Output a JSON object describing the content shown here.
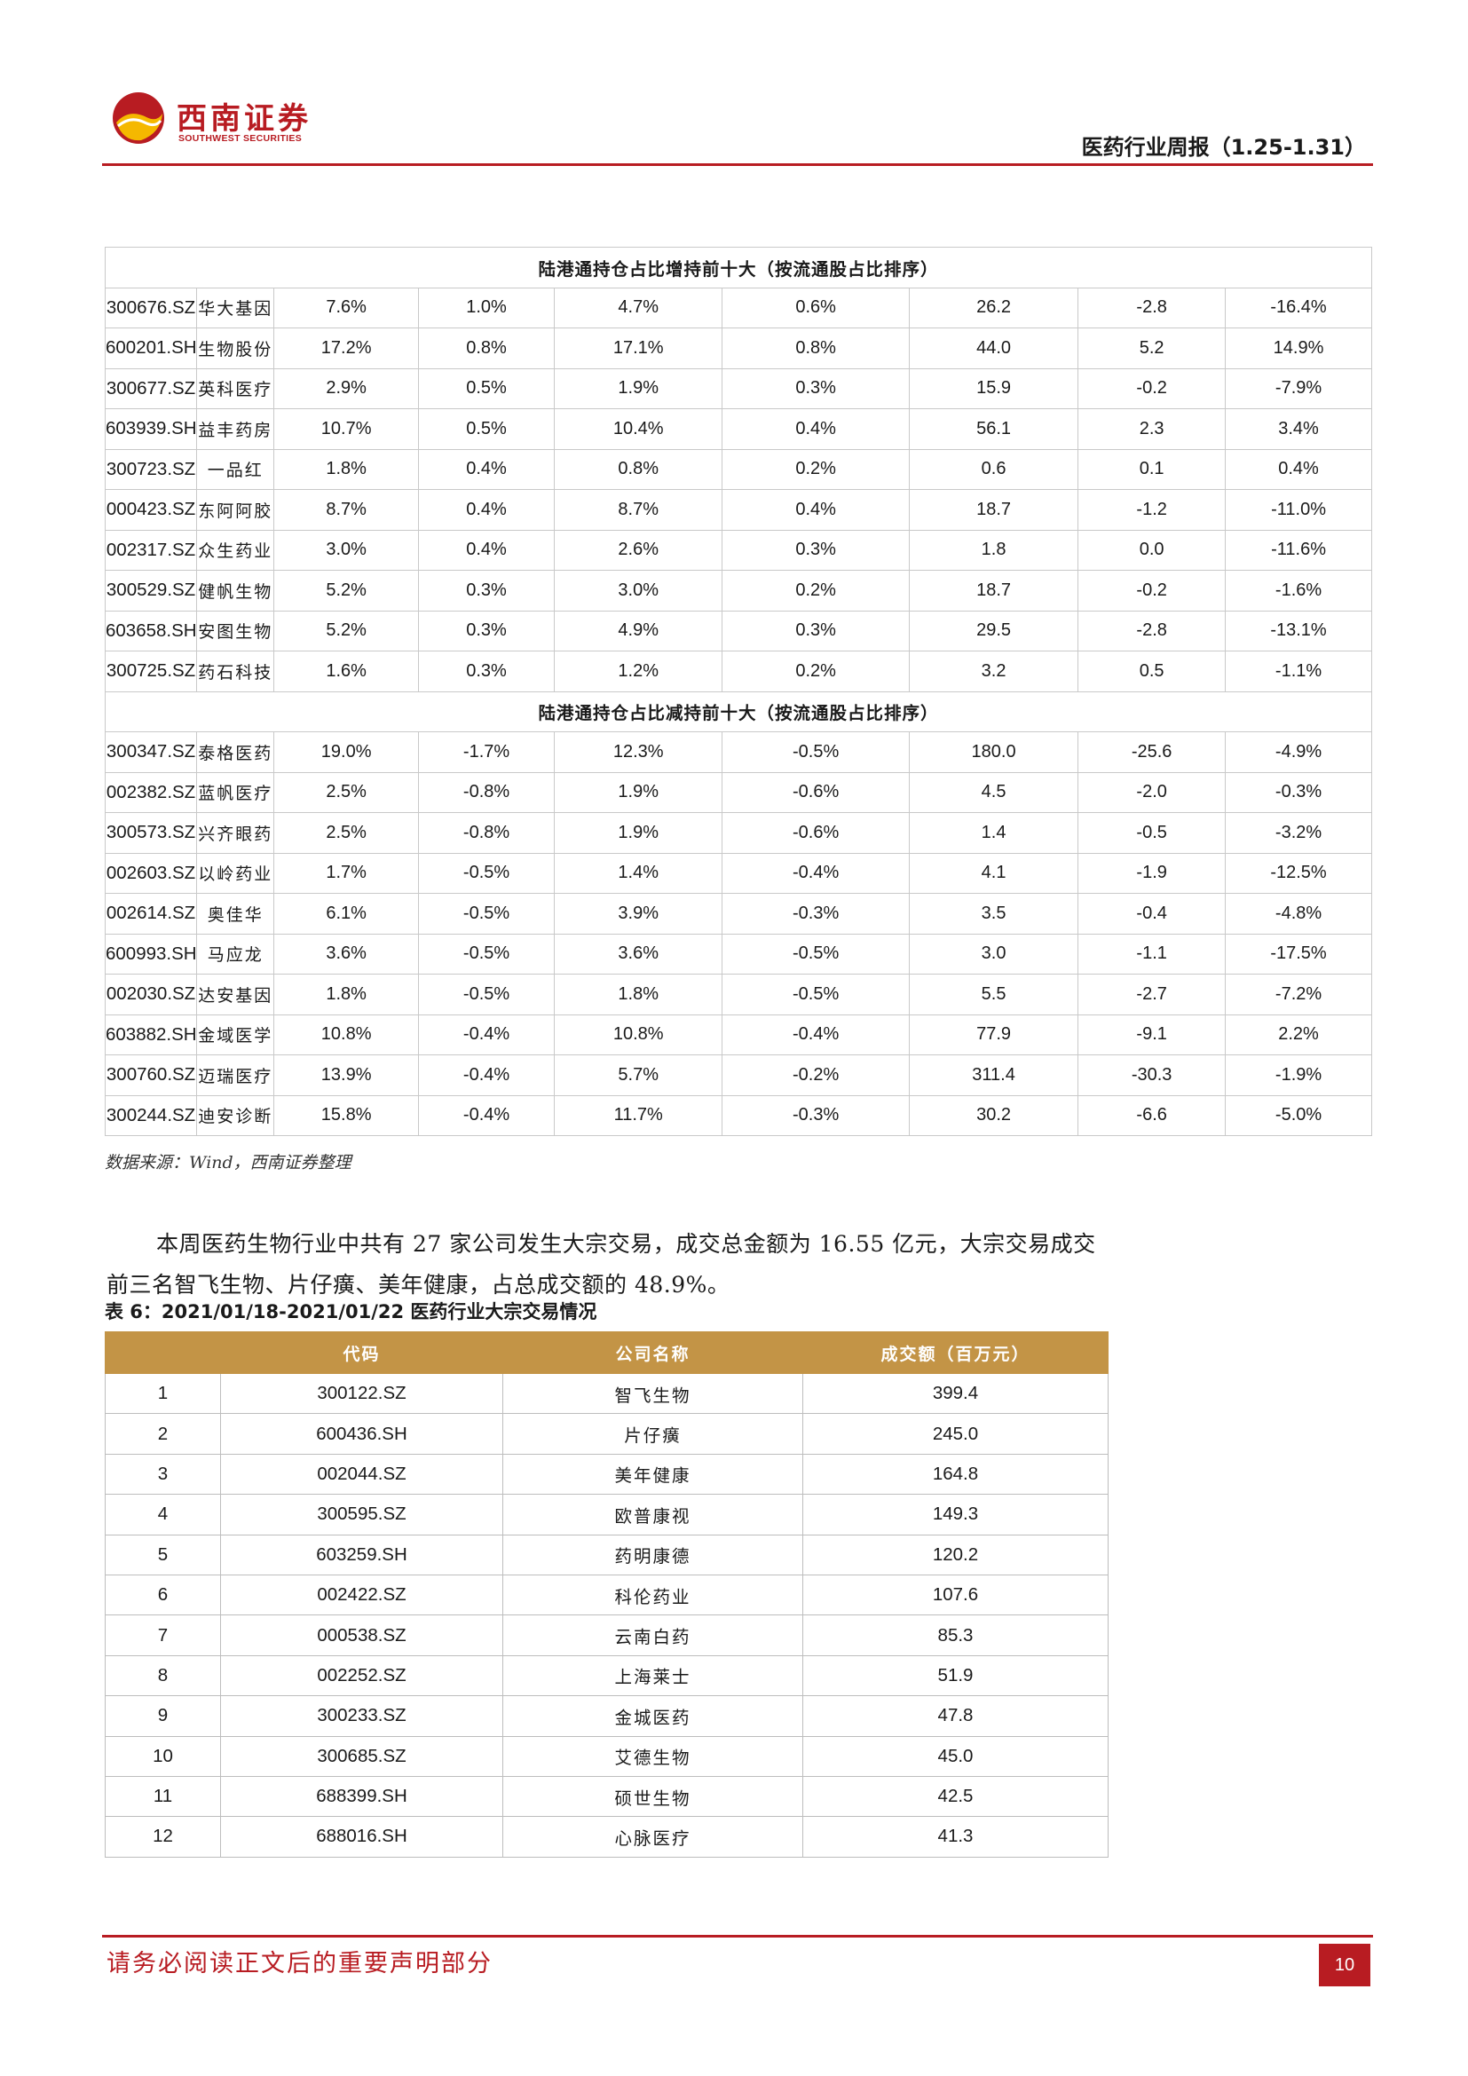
{
  "header": {
    "logo_cn": "西南证券",
    "logo_en": "SOUTHWEST SECURITIES",
    "report_title": "医药行业周报（1.25-1.31）",
    "brand_color": "#b81c22",
    "logo_yellow": "#f5b800"
  },
  "table5": {
    "section_increase": "陆港通持仓占比增持前十大（按流通股占比排序）",
    "increase_rows": [
      [
        "300676.SZ",
        "华大基因",
        "7.6%",
        "1.0%",
        "4.7%",
        "0.6%",
        "26.2",
        "-2.8",
        "-16.4%"
      ],
      [
        "600201.SH",
        "生物股份",
        "17.2%",
        "0.8%",
        "17.1%",
        "0.8%",
        "44.0",
        "5.2",
        "14.9%"
      ],
      [
        "300677.SZ",
        "英科医疗",
        "2.9%",
        "0.5%",
        "1.9%",
        "0.3%",
        "15.9",
        "-0.2",
        "-7.9%"
      ],
      [
        "603939.SH",
        "益丰药房",
        "10.7%",
        "0.5%",
        "10.4%",
        "0.4%",
        "56.1",
        "2.3",
        "3.4%"
      ],
      [
        "300723.SZ",
        "一品红",
        "1.8%",
        "0.4%",
        "0.8%",
        "0.2%",
        "0.6",
        "0.1",
        "0.4%"
      ],
      [
        "000423.SZ",
        "东阿阿胶",
        "8.7%",
        "0.4%",
        "8.7%",
        "0.4%",
        "18.7",
        "-1.2",
        "-11.0%"
      ],
      [
        "002317.SZ",
        "众生药业",
        "3.0%",
        "0.4%",
        "2.6%",
        "0.3%",
        "1.8",
        "0.0",
        "-11.6%"
      ],
      [
        "300529.SZ",
        "健帆生物",
        "5.2%",
        "0.3%",
        "3.0%",
        "0.2%",
        "18.7",
        "-0.2",
        "-1.6%"
      ],
      [
        "603658.SH",
        "安图生物",
        "5.2%",
        "0.3%",
        "4.9%",
        "0.3%",
        "29.5",
        "-2.8",
        "-13.1%"
      ],
      [
        "300725.SZ",
        "药石科技",
        "1.6%",
        "0.3%",
        "1.2%",
        "0.2%",
        "3.2",
        "0.5",
        "-1.1%"
      ]
    ],
    "section_decrease": "陆港通持仓占比减持前十大（按流通股占比排序）",
    "decrease_rows": [
      [
        "300347.SZ",
        "泰格医药",
        "19.0%",
        "-1.7%",
        "12.3%",
        "-0.5%",
        "180.0",
        "-25.6",
        "-4.9%"
      ],
      [
        "002382.SZ",
        "蓝帆医疗",
        "2.5%",
        "-0.8%",
        "1.9%",
        "-0.6%",
        "4.5",
        "-2.0",
        "-0.3%"
      ],
      [
        "300573.SZ",
        "兴齐眼药",
        "2.5%",
        "-0.8%",
        "1.9%",
        "-0.6%",
        "1.4",
        "-0.5",
        "-3.2%"
      ],
      [
        "002603.SZ",
        "以岭药业",
        "1.7%",
        "-0.5%",
        "1.4%",
        "-0.4%",
        "4.1",
        "-1.9",
        "-12.5%"
      ],
      [
        "002614.SZ",
        "奥佳华",
        "6.1%",
        "-0.5%",
        "3.9%",
        "-0.3%",
        "3.5",
        "-0.4",
        "-4.8%"
      ],
      [
        "600993.SH",
        "马应龙",
        "3.6%",
        "-0.5%",
        "3.6%",
        "-0.5%",
        "3.0",
        "-1.1",
        "-17.5%"
      ],
      [
        "002030.SZ",
        "达安基因",
        "1.8%",
        "-0.5%",
        "1.8%",
        "-0.5%",
        "5.5",
        "-2.7",
        "-7.2%"
      ],
      [
        "603882.SH",
        "金域医学",
        "10.8%",
        "-0.4%",
        "10.8%",
        "-0.4%",
        "77.9",
        "-9.1",
        "2.2%"
      ],
      [
        "300760.SZ",
        "迈瑞医疗",
        "13.9%",
        "-0.4%",
        "5.7%",
        "-0.2%",
        "311.4",
        "-30.3",
        "-1.9%"
      ],
      [
        "300244.SZ",
        "迪安诊断",
        "15.8%",
        "-0.4%",
        "11.7%",
        "-0.3%",
        "30.2",
        "-6.6",
        "-5.0%"
      ]
    ]
  },
  "source_note": "数据来源：Wind，西南证券整理",
  "paragraph": "本周医药生物行业中共有 27 家公司发生大宗交易，成交总金额为 16.55 亿元，大宗交易成交前三名智飞生物、片仔癀、美年健康，占总成交额的 48.9%。",
  "table6": {
    "caption": "表 6：2021/01/18-2021/01/22 医药行业大宗交易情况",
    "header_color": "#c39446",
    "headers": [
      "",
      "代码",
      "公司名称",
      "成交额（百万元）"
    ],
    "rows": [
      [
        "1",
        "300122.SZ",
        "智飞生物",
        "399.4"
      ],
      [
        "2",
        "600436.SH",
        "片仔癀",
        "245.0"
      ],
      [
        "3",
        "002044.SZ",
        "美年健康",
        "164.8"
      ],
      [
        "4",
        "300595.SZ",
        "欧普康视",
        "149.3"
      ],
      [
        "5",
        "603259.SH",
        "药明康德",
        "120.2"
      ],
      [
        "6",
        "002422.SZ",
        "科伦药业",
        "107.6"
      ],
      [
        "7",
        "000538.SZ",
        "云南白药",
        "85.3"
      ],
      [
        "8",
        "002252.SZ",
        "上海莱士",
        "51.9"
      ],
      [
        "9",
        "300233.SZ",
        "金城医药",
        "47.8"
      ],
      [
        "10",
        "300685.SZ",
        "艾德生物",
        "45.0"
      ],
      [
        "11",
        "688399.SH",
        "硕世生物",
        "42.5"
      ],
      [
        "12",
        "688016.SH",
        "心脉医疗",
        "41.3"
      ]
    ]
  },
  "footer": {
    "note": "请务必阅读正文后的重要声明部分",
    "page_number": "10"
  }
}
